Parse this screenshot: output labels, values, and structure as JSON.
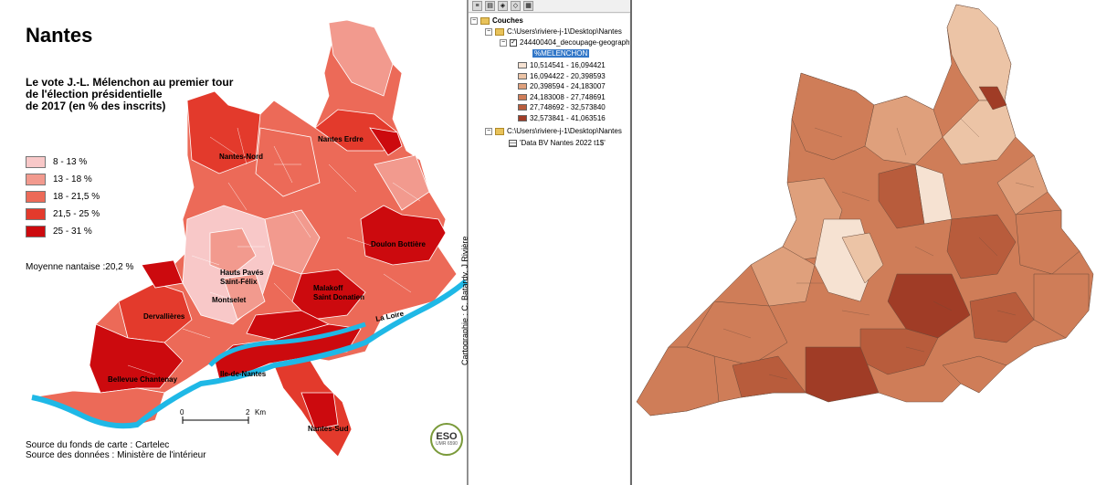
{
  "left": {
    "title": "Nantes",
    "subtitle_1": "Le vote J.-L. Mélenchon au premier tour",
    "subtitle_2": "de l'élection présidentielle",
    "subtitle_3": "de 2017 (en % des inscrits)",
    "legend": [
      {
        "label": "8 - 13 %",
        "color": "#f8c8c8"
      },
      {
        "label": "13 - 18 %",
        "color": "#f29a8e"
      },
      {
        "label": "18 - 21,5 %",
        "color": "#ec6a58"
      },
      {
        "label": "21,5 - 25 %",
        "color": "#e33a2c"
      },
      {
        "label": "25 - 31 %",
        "color": "#cc0a0e"
      }
    ],
    "average": "Moyenne nantaise :20,2 %",
    "source_1": "Source du fonds de carte : Cartelec",
    "source_2": "Source des données : Ministère de l'intérieur",
    "credit": "Cartographie : C. Batardy, J Rivière",
    "scale_0": "0",
    "scale_2": "2",
    "scale_unit": "Km",
    "logo": "ESO",
    "logo_sub": "UMR 6590",
    "labels": {
      "nantes_erdre": "Nantes Erdre",
      "nantes_nord": "Nantes-Nord",
      "doulon": "Doulon Bottière",
      "hauts_paves": "Hauts Pavés",
      "saint_felix": "Saint-Félix",
      "malakoff": "Malakoff",
      "saint_donatien": "Saint Donatien",
      "montselet": "Montselet",
      "dervallieres": "Dervallières",
      "la_loire": "La Loire",
      "ile_de_nantes": "Ile-de-Nantes",
      "bellevue": "Bellevue Chantenay",
      "nantes_sud": "Nantes-Sud"
    }
  },
  "toc": {
    "root": "Couches",
    "path_1": "C:\\Users\\riviere-j-1\\Desktop\\Nantes",
    "layer": "244400404_decoupage-geograph",
    "field": "%MELENCHON",
    "classes": [
      {
        "label": "10,514541 - 16,094421",
        "color": "#f6e2d2"
      },
      {
        "label": "16,094422 - 20,398593",
        "color": "#ecc4a6"
      },
      {
        "label": "20,398594 - 24,183007",
        "color": "#dfa07c"
      },
      {
        "label": "24,183008 - 27,748691",
        "color": "#cf7d58"
      },
      {
        "label": "27,748692 - 32,573840",
        "color": "#b85c3c"
      },
      {
        "label": "32,573841 - 41,063516",
        "color": "#a03c26"
      }
    ],
    "path_2": "C:\\Users\\riviere-j-1\\Desktop\\Nantes",
    "table": "'Data BV Nantes 2022 t1$'"
  }
}
